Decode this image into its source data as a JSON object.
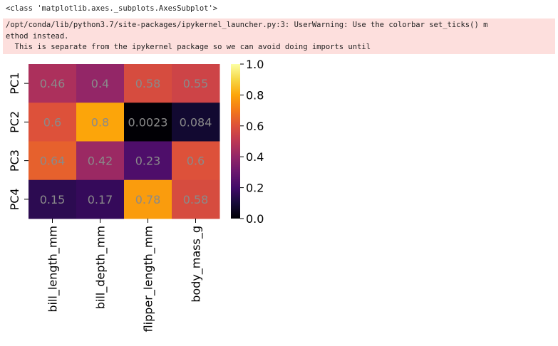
{
  "output": {
    "repr": "<class 'matplotlib.axes._subplots.AxesSubplot'>",
    "warning_lines": [
      "/opt/conda/lib/python3.7/site-packages/ipykernel_launcher.py:3: UserWarning: Use the colorbar set_ticks() m",
      "ethod instead.",
      "  This is separate from the ipykernel package so we can avoid doing imports until"
    ]
  },
  "chart_data": {
    "type": "heatmap",
    "colormap": "inferno",
    "rows": [
      "PC1",
      "PC2",
      "PC3",
      "PC4"
    ],
    "columns": [
      "bill_length_mm",
      "bill_depth_mm",
      "flipper_length_mm",
      "body_mass_g"
    ],
    "values": [
      [
        0.46,
        0.4,
        0.58,
        0.55
      ],
      [
        0.6,
        0.8,
        0.0023,
        0.084
      ],
      [
        0.64,
        0.42,
        0.23,
        0.6
      ],
      [
        0.15,
        0.17,
        0.78,
        0.58
      ]
    ],
    "annotations": [
      [
        "0.46",
        "0.4",
        "0.58",
        "0.55"
      ],
      [
        "0.6",
        "0.8",
        "0.0023",
        "0.084"
      ],
      [
        "0.64",
        "0.42",
        "0.23",
        "0.6"
      ],
      [
        "0.15",
        "0.17",
        "0.78",
        "0.58"
      ]
    ],
    "colorbar": {
      "range": [
        0.0,
        1.0
      ],
      "ticks": [
        0.0,
        0.2,
        0.4,
        0.6,
        0.8,
        1.0
      ],
      "tick_labels": [
        "0.0",
        "0.2",
        "0.4",
        "0.6",
        "0.8",
        "1.0"
      ]
    },
    "title": "",
    "xlabel": "",
    "ylabel": ""
  }
}
